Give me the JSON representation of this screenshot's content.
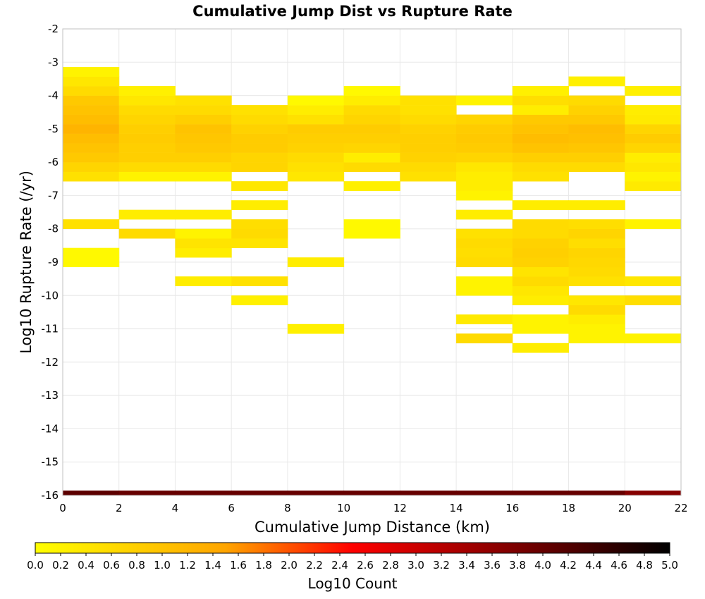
{
  "chart_data": {
    "type": "heatmap",
    "title": "Cumulative Jump Dist vs Rupture Rate",
    "xlabel": "Cumulative Jump Distance (km)",
    "ylabel": "Log10 Rupture Rate (/yr)",
    "xlim": [
      0,
      22
    ],
    "ylim": [
      -16,
      -2
    ],
    "x_ticks": [
      0,
      2,
      4,
      6,
      8,
      10,
      12,
      14,
      16,
      18,
      20,
      22
    ],
    "y_ticks": [
      -2,
      -3,
      -4,
      -5,
      -6,
      -7,
      -8,
      -9,
      -10,
      -11,
      -12,
      -13,
      -14,
      -15,
      -16
    ],
    "grid": true,
    "bin_width_x": 2,
    "bin_height_y": 0.286,
    "colorbar": {
      "label": "Log10 Count",
      "min": 0.0,
      "max": 5.0,
      "ticks": [
        "0.0",
        "0.2",
        "0.4",
        "0.6",
        "0.8",
        "1.0",
        "1.2",
        "1.4",
        "1.6",
        "1.8",
        "2.0",
        "2.2",
        "2.4",
        "2.6",
        "2.8",
        "3.0",
        "3.2",
        "3.4",
        "3.6",
        "3.8",
        "4.0",
        "4.2",
        "4.4",
        "4.6",
        "4.8",
        "5.0"
      ],
      "colors": [
        "#ffff00",
        "#ffa500",
        "#ff0000",
        "#800000",
        "#000000"
      ],
      "stops": [
        0,
        0.3,
        0.5,
        0.75,
        1
      ]
    },
    "columns": [
      {
        "x": 0,
        "cells": [
          [
            -16,
            4.1
          ],
          [
            -9,
            0.1
          ],
          [
            -8.714,
            0.1
          ],
          [
            -7.857,
            0.5
          ],
          [
            -6.429,
            0.5
          ],
          [
            -6.143,
            0.7
          ],
          [
            -5.857,
            0.9
          ],
          [
            -5.571,
            1.0
          ],
          [
            -5.286,
            1.1
          ],
          [
            -5,
            1.25
          ],
          [
            -4.714,
            1.1
          ],
          [
            -4.429,
            1.0
          ],
          [
            -4.143,
            0.9
          ],
          [
            -3.857,
            0.6
          ],
          [
            -3.571,
            0.4
          ],
          [
            -3.286,
            0.2
          ]
        ]
      },
      {
        "x": 2,
        "cells": [
          [
            -16,
            4.0
          ],
          [
            -8.143,
            0.6
          ],
          [
            -7.571,
            0.3
          ],
          [
            -6.429,
            0.2
          ],
          [
            -6.143,
            0.6
          ],
          [
            -5.857,
            0.8
          ],
          [
            -5.571,
            0.8
          ],
          [
            -5.286,
            0.85
          ],
          [
            -5,
            0.8
          ],
          [
            -4.714,
            0.7
          ],
          [
            -4.429,
            0.6
          ],
          [
            -4.143,
            0.4
          ],
          [
            -3.857,
            0.25
          ]
        ]
      },
      {
        "x": 4,
        "cells": [
          [
            -16,
            4.0
          ],
          [
            -9.571,
            0.3
          ],
          [
            -8.714,
            0.3
          ],
          [
            -8.429,
            0.45
          ],
          [
            -8.143,
            0.2
          ],
          [
            -7.571,
            0.3
          ],
          [
            -6.429,
            0.2
          ],
          [
            -6.143,
            0.6
          ],
          [
            -5.857,
            0.8
          ],
          [
            -5.571,
            0.9
          ],
          [
            -5.286,
            0.95
          ],
          [
            -5,
            1.0
          ],
          [
            -4.714,
            0.8
          ],
          [
            -4.429,
            0.6
          ],
          [
            -4.143,
            0.5
          ]
        ]
      },
      {
        "x": 6,
        "cells": [
          [
            -16,
            4.0
          ],
          [
            -10.143,
            0.25
          ],
          [
            -9.571,
            0.5
          ],
          [
            -8.429,
            0.45
          ],
          [
            -8.143,
            0.6
          ],
          [
            -7.857,
            0.55
          ],
          [
            -7.286,
            0.3
          ],
          [
            -6.714,
            0.4
          ],
          [
            -6.143,
            0.7
          ],
          [
            -5.857,
            0.7
          ],
          [
            -5.571,
            0.85
          ],
          [
            -5.286,
            0.85
          ],
          [
            -5,
            0.75
          ],
          [
            -4.714,
            0.6
          ],
          [
            -4.429,
            0.5
          ]
        ]
      },
      {
        "x": 8,
        "cells": [
          [
            -16,
            4.0
          ],
          [
            -11,
            0.25
          ],
          [
            -9,
            0.3
          ],
          [
            -6.429,
            0.4
          ],
          [
            -6.143,
            0.5
          ],
          [
            -5.857,
            0.6
          ],
          [
            -5.571,
            0.75
          ],
          [
            -5.286,
            0.8
          ],
          [
            -5,
            0.85
          ],
          [
            -4.714,
            0.5
          ],
          [
            -4.429,
            0.3
          ],
          [
            -4.143,
            0.1
          ]
        ]
      },
      {
        "x": 10,
        "cells": [
          [
            -16,
            4.0
          ],
          [
            -8.143,
            0.1
          ],
          [
            -7.857,
            0.1
          ],
          [
            -6.714,
            0.25
          ],
          [
            -6.143,
            0.6
          ],
          [
            -5.857,
            0.3
          ],
          [
            -5.571,
            0.7
          ],
          [
            -5.286,
            0.8
          ],
          [
            -5,
            0.85
          ],
          [
            -4.714,
            0.7
          ],
          [
            -4.429,
            0.6
          ],
          [
            -4.143,
            0.3
          ],
          [
            -3.857,
            0.1
          ]
        ]
      },
      {
        "x": 12,
        "cells": [
          [
            -16,
            4.0
          ],
          [
            -6.429,
            0.5
          ],
          [
            -6.143,
            0.6
          ],
          [
            -5.857,
            0.75
          ],
          [
            -5.571,
            0.8
          ],
          [
            -5.286,
            0.8
          ],
          [
            -5,
            0.75
          ],
          [
            -4.714,
            0.6
          ],
          [
            -4.429,
            0.5
          ],
          [
            -4.143,
            0.5
          ]
        ]
      },
      {
        "x": 14,
        "cells": [
          [
            -16,
            4.0
          ],
          [
            -11.286,
            0.6
          ],
          [
            -10.714,
            0.35
          ],
          [
            -9.857,
            0.2
          ],
          [
            -9.571,
            0.2
          ],
          [
            -9,
            0.6
          ],
          [
            -8.714,
            0.55
          ],
          [
            -8.429,
            0.6
          ],
          [
            -8.143,
            0.5
          ],
          [
            -7.571,
            0.3
          ],
          [
            -7,
            0.2
          ],
          [
            -6.714,
            0.3
          ],
          [
            -6.429,
            0.3
          ],
          [
            -6.143,
            0.4
          ],
          [
            -5.857,
            0.7
          ],
          [
            -5.571,
            0.85
          ],
          [
            -5.286,
            0.9
          ],
          [
            -5,
            0.85
          ],
          [
            -4.714,
            0.7
          ],
          [
            -4.143,
            0.2
          ]
        ]
      },
      {
        "x": 16,
        "cells": [
          [
            -16,
            4.0
          ],
          [
            -11.571,
            0.3
          ],
          [
            -11,
            0.2
          ],
          [
            -10.714,
            0.2
          ],
          [
            -10.143,
            0.3
          ],
          [
            -9.857,
            0.4
          ],
          [
            -9.571,
            0.6
          ],
          [
            -9.286,
            0.45
          ],
          [
            -9,
            0.75
          ],
          [
            -8.714,
            0.8
          ],
          [
            -8.429,
            0.75
          ],
          [
            -8.143,
            0.6
          ],
          [
            -7.857,
            0.6
          ],
          [
            -7.286,
            0.3
          ],
          [
            -6.429,
            0.5
          ],
          [
            -6.143,
            0.6
          ],
          [
            -5.857,
            0.8
          ],
          [
            -5.571,
            1.0
          ],
          [
            -5.286,
            1.1
          ],
          [
            -5,
            1.0
          ],
          [
            -4.714,
            0.9
          ],
          [
            -4.429,
            0.3
          ],
          [
            -4.143,
            0.55
          ],
          [
            -3.857,
            0.25
          ]
        ]
      },
      {
        "x": 18,
        "cells": [
          [
            -16,
            4.0
          ],
          [
            -11.286,
            0.2
          ],
          [
            -11,
            0.2
          ],
          [
            -10.714,
            0.3
          ],
          [
            -10.429,
            0.6
          ],
          [
            -10.143,
            0.4
          ],
          [
            -9.571,
            0.5
          ],
          [
            -9.286,
            0.6
          ],
          [
            -9,
            0.65
          ],
          [
            -8.714,
            0.7
          ],
          [
            -8.429,
            0.55
          ],
          [
            -8.143,
            0.7
          ],
          [
            -7.857,
            0.55
          ],
          [
            -7.286,
            0.3
          ],
          [
            -6.143,
            0.6
          ],
          [
            -5.857,
            0.8
          ],
          [
            -5.571,
            0.95
          ],
          [
            -5.286,
            1.05
          ],
          [
            -5,
            1.1
          ],
          [
            -4.714,
            0.9
          ],
          [
            -4.429,
            0.75
          ],
          [
            -4.143,
            0.6
          ],
          [
            -3.571,
            0.25
          ]
        ]
      },
      {
        "x": 20,
        "cells": [
          [
            -16,
            3.7
          ],
          [
            -11.286,
            0.2
          ],
          [
            -10.143,
            0.55
          ],
          [
            -9.571,
            0.4
          ],
          [
            -7.857,
            0.2
          ],
          [
            -6.714,
            0.35
          ],
          [
            -6.429,
            0.2
          ],
          [
            -6.143,
            0.4
          ],
          [
            -5.857,
            0.3
          ],
          [
            -5.571,
            0.7
          ],
          [
            -5.286,
            0.85
          ],
          [
            -5,
            0.7
          ],
          [
            -4.714,
            0.35
          ],
          [
            -4.429,
            0.3
          ],
          [
            -3.857,
            0.25
          ]
        ]
      }
    ]
  }
}
